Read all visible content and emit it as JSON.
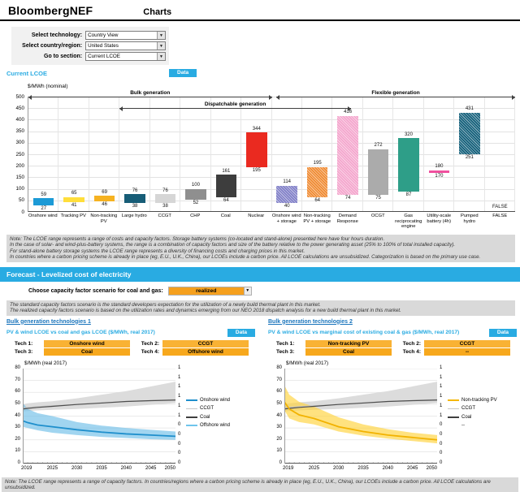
{
  "header": {
    "logo": "BloombergNEF",
    "title": "Charts"
  },
  "controls": {
    "rows": [
      {
        "label": "Select technology:",
        "value": "Country View"
      },
      {
        "label": "Select country/region:",
        "value": "United States"
      },
      {
        "label": "Go to section:",
        "value": "Current LCOE"
      }
    ]
  },
  "current_lcoe": {
    "title": "Current LCOE",
    "data_button": "Data",
    "note_lines": [
      "Note: The LCOE range represents a range of costs and capacity factors. Storage battery systems (co-located and stand-alone) presented here have four hours duration.",
      "In the case of solar- and wind-plus-battery systems, the range is a combination of capacity factors and size of the battery relative to the power generating asset (25% to 100% of total installed capacity).",
      "For stand-alone battery storage systems the LCOE range represents a diversity of financing costs and charging prices in this market.",
      "In countries where a carbon pricing scheme is already in place (eg, E.U., U.K., China), our LCOEs include a carbon price. All LCOE calculations are unsubsidized. Categorization is based on the primary use case."
    ]
  },
  "forecast": {
    "banner": "Forecast - Levelized cost of electricity",
    "scenario_label": "Choose capacity factor scenario for coal and gas:",
    "scenario_value": "realized",
    "note_lines": [
      "The standard capacity factors scenario is the standard developers expectation for the utilization of a newly build thermal plant in this market.",
      "The realized capacity factors scenario is based on the utilization rates and dynamics emerging from our NEO 2018 dispatch analysis for a new build thermal plant in this market."
    ],
    "panels": [
      {
        "link": "Bulk generation technologies 1",
        "title": "PV & wind LCOE vs coal and gas LCOE ($/MWh, real 2017)",
        "data_button": "Data",
        "tech": [
          {
            "label": "Tech 1:",
            "value": "Onshore wind"
          },
          {
            "label": "Tech 2:",
            "value": "CCGT"
          },
          {
            "label": "Tech 3:",
            "value": "Coal"
          },
          {
            "label": "Tech 4:",
            "value": "Offshore wind"
          }
        ]
      },
      {
        "link": "Bulk generation technologies 2",
        "title": "PV & wind LCOE vs marginal cost of existing coal & gas ($/MWh, real 2017)",
        "data_button": "Data",
        "tech": [
          {
            "label": "Tech 1:",
            "value": "Non-tracking PV"
          },
          {
            "label": "Tech 2:",
            "value": "CCGT"
          },
          {
            "label": "Tech 3:",
            "value": "Coal"
          },
          {
            "label": "Tech 4:",
            "value": "--"
          }
        ]
      }
    ]
  },
  "footer_note": "Note: The LCOE range represents a range of capacity factors. In countries/regions where a carbon pricing scheme is already in place (eg, E.U., U.K., China), our LCOEs include a carbon price. All LCOE calculations are unsubsidized.",
  "chart_data": [
    {
      "id": "current_lcoe_ranges",
      "type": "bar",
      "title": "$/MWh (nominal)",
      "ylim": [
        0,
        500
      ],
      "ytick_step": 50,
      "grid": true,
      "group_arrows": [
        {
          "label": "Bulk generation",
          "from_col": 0,
          "to_col": 8,
          "level": 500
        },
        {
          "label": "Dispatchable generation",
          "from_col": 3,
          "to_col": 10.6,
          "level": 450
        },
        {
          "label": "Flexible generation",
          "from_col": 8.15,
          "to_col": 16,
          "level": 500
        }
      ],
      "bars": [
        {
          "category": "Onshore wind",
          "low": 27,
          "high": 59,
          "color": "#1C9AD6",
          "pattern": "solid"
        },
        {
          "category": "Tracking PV",
          "low": 41,
          "high": 65,
          "color": "#FFDE3B",
          "pattern": "solid"
        },
        {
          "category": "Non-tracking PV",
          "low": 46,
          "high": 69,
          "color": "#F6B221",
          "pattern": "solid"
        },
        {
          "category": "Large hydro",
          "low": 38,
          "high": 76,
          "color": "#175D77",
          "pattern": "solid"
        },
        {
          "category": "CCGT",
          "low": 38,
          "high": 76,
          "color": "#D6D6D6",
          "pattern": "solid"
        },
        {
          "category": "CHP",
          "low": 52,
          "high": 100,
          "color": "#8F8F8F",
          "pattern": "solid"
        },
        {
          "category": "Coal",
          "low": 64,
          "high": 161,
          "color": "#3D3D3D",
          "pattern": "solid"
        },
        {
          "category": "Nuclear",
          "low": 195,
          "high": 344,
          "color": "#EA2A20",
          "pattern": "solid"
        },
        {
          "category": "Onshore wind + storage",
          "low": 40,
          "high": 114,
          "color": "#8180C8",
          "pattern": "hatch"
        },
        {
          "category": "Non-tracking PV + storage",
          "low": 64,
          "high": 195,
          "color": "#F08B33",
          "pattern": "hatch"
        },
        {
          "category": "Demand Response",
          "low": 74,
          "high": 416,
          "color": "#F4A6CD",
          "pattern": "hatch"
        },
        {
          "category": "OCGT",
          "low": 75,
          "high": 272,
          "color": "#ABABAB",
          "pattern": "solid"
        },
        {
          "category": "Gas reciprocating engine",
          "low": 87,
          "high": 320,
          "color": "#2E9E88",
          "pattern": "solid"
        },
        {
          "category": "Utility-scale battery (4h)",
          "low": 170,
          "high": 180,
          "color": "#F0509E",
          "pattern": "solid"
        },
        {
          "category": "Pumped hydro",
          "low": 251,
          "high": 431,
          "color": "#14607B",
          "pattern": "hatch"
        },
        {
          "category": "FALSE",
          "low": null,
          "high": null,
          "label_override": "FALSE",
          "pattern": "none"
        }
      ]
    },
    {
      "id": "forecast_bulk_1",
      "type": "line",
      "ylabel": "$/MWh (real 2017)",
      "ylim": [
        0,
        80
      ],
      "ytick_step": 10,
      "xlim": [
        2019,
        2050
      ],
      "xticks": [
        2019,
        2025,
        2030,
        2035,
        2040,
        2045,
        2050
      ],
      "right_axis_ticks": [
        "1",
        "1",
        "1",
        "1",
        "1",
        "1",
        "0",
        "0",
        "0",
        "0",
        "0"
      ],
      "x": [
        2019,
        2020,
        2022,
        2025,
        2030,
        2035,
        2040,
        2045,
        2050
      ],
      "bands": [
        {
          "name": "CCGT / Coal range",
          "color": "#DCDCDC",
          "opacity": 1,
          "low": [
            44,
            44.3,
            44.8,
            45.3,
            46,
            47,
            48,
            49.5,
            51
          ],
          "high": [
            50,
            50.8,
            51.6,
            52.5,
            55,
            58,
            61,
            65,
            69
          ]
        },
        {
          "name": "Onshore wind range",
          "color": "#6FBFE8",
          "opacity": 0.65,
          "low": [
            31,
            30,
            28,
            26,
            24,
            22.5,
            21.5,
            20.5,
            20
          ],
          "high": [
            51,
            46,
            42.5,
            40,
            35,
            32,
            30,
            28.5,
            27
          ]
        }
      ],
      "lines": [
        {
          "name": "CCGT",
          "color": "#C6C6C6",
          "width": 1,
          "values": [
            47,
            47.4,
            48,
            48.7,
            50,
            51.3,
            52.3,
            53.2,
            54
          ]
        },
        {
          "name": "Coal",
          "color": "#4D4D4D",
          "width": 1.2,
          "values": [
            46,
            46.5,
            47.3,
            48.2,
            49.8,
            51,
            52.3,
            53,
            53.5
          ]
        },
        {
          "name": "Onshore wind",
          "color": "#1F8FCC",
          "width": 1.8,
          "values": [
            36,
            34.5,
            32.5,
            31,
            28.5,
            26.5,
            25,
            24,
            23
          ]
        }
      ],
      "legend": [
        {
          "label": "Onshore wind",
          "color": "#1F8FCC",
          "width": 2
        },
        {
          "label": "CCGT",
          "color": "#C6C6C6",
          "width": 1
        },
        {
          "label": "Coal",
          "color": "#3F3F3F",
          "width": 2
        },
        {
          "label": "Offshore wind",
          "color": "#6FC5EC",
          "width": 2
        }
      ]
    },
    {
      "id": "forecast_bulk_2",
      "type": "line",
      "ylabel": "$/MWh (real 2017)",
      "ylim": [
        0,
        80
      ],
      "ytick_step": 10,
      "xlim": [
        2019,
        2050
      ],
      "xticks": [
        2019,
        2025,
        2030,
        2035,
        2040,
        2045,
        2050
      ],
      "right_axis_ticks": [
        "1",
        "1",
        "1",
        "1",
        "1",
        "1",
        "0",
        "0",
        "0",
        "0",
        "0"
      ],
      "x": [
        2019,
        2020,
        2022,
        2025,
        2030,
        2035,
        2040,
        2045,
        2050
      ],
      "bands": [
        {
          "name": "CCGT / Coal range",
          "color": "#DCDCDC",
          "opacity": 1,
          "low": [
            44,
            44.3,
            44.8,
            45.3,
            46,
            47,
            48,
            49.5,
            51
          ],
          "high": [
            50,
            50.8,
            51.6,
            52.5,
            55,
            58,
            61,
            65,
            69
          ]
        },
        {
          "name": "Non-tracking PV range",
          "color": "#FFD23B",
          "opacity": 0.65,
          "low": [
            45,
            38,
            35,
            33,
            27,
            23.5,
            21,
            19,
            17
          ],
          "high": [
            66,
            58,
            52,
            48,
            39,
            33,
            29,
            26,
            24
          ]
        }
      ],
      "lines": [
        {
          "name": "CCGT",
          "color": "#C6C6C6",
          "width": 1,
          "values": [
            47,
            47.4,
            48,
            48.7,
            50,
            51.3,
            52.3,
            53.2,
            54
          ]
        },
        {
          "name": "Coal",
          "color": "#4D4D4D",
          "width": 1.2,
          "values": [
            46,
            46.5,
            47.3,
            48.2,
            49.8,
            51,
            52.3,
            53,
            53.5
          ]
        },
        {
          "name": "Non-tracking PV",
          "color": "#F2B200",
          "width": 1.8,
          "values": [
            52,
            46,
            41,
            38,
            31,
            27,
            24,
            22,
            20
          ]
        }
      ],
      "legend": [
        {
          "label": "Non-tracking PV",
          "color": "#F5B70A",
          "width": 2
        },
        {
          "label": "CCGT",
          "color": "#C6C6C6",
          "width": 1
        },
        {
          "label": "Coal",
          "color": "#3F3F3F",
          "width": 2
        },
        {
          "label": "--",
          "color": "#999999",
          "width": 0
        }
      ]
    }
  ]
}
